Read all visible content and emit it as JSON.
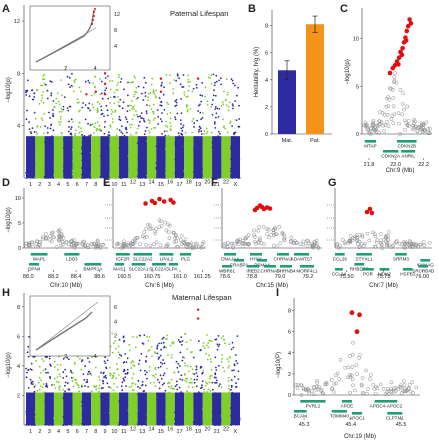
{
  "colors": {
    "blue": "#2e2aa0",
    "green": "#7ecf28",
    "red": "#e01010",
    "gray": "#8a8a8a",
    "orange": "#f39419",
    "teal": "#1f9f77"
  },
  "panels": {
    "A": {
      "label": "A",
      "title": "Paternal Lifespan",
      "ylabel": "−log10(p)",
      "yticks": [
        "4",
        "8",
        "12"
      ],
      "xticks": [
        "1",
        "2",
        "3",
        "4",
        "5",
        "6",
        "7",
        "8",
        "9",
        "10",
        "11",
        "13",
        "15",
        "17",
        "19",
        "21",
        "X"
      ],
      "xticks2": [
        "12",
        "14",
        "16",
        "18",
        "20",
        "22"
      ],
      "inset_yticks": [
        "4",
        "8",
        "12"
      ],
      "inset_xticks": [
        "2",
        "4"
      ]
    },
    "B": {
      "label": "B",
      "ylabel": "Heritability, h²g (%)",
      "yticks": [
        "0",
        "2",
        "4",
        "6",
        "8"
      ],
      "chart_data": {
        "type": "bar",
        "categories": [
          "Mat.",
          "Pat."
        ],
        "values": [
          4.7,
          8.1
        ],
        "errors": [
          0.7,
          0.6
        ],
        "ylim": [
          0,
          9
        ]
      }
    },
    "C": {
      "label": "C",
      "xlabel": "Chr:9 (Mb)",
      "ylabel": "−log10(p)",
      "yticks": [
        "0",
        "5",
        "10"
      ],
      "xticks": [
        "21.8",
        "22.0",
        "22.2"
      ],
      "genes": [
        "MTAP",
        "CDKN2A",
        "CDKN2B",
        "ANRIL"
      ]
    },
    "D": {
      "label": "D",
      "xlabel": "Chr:10 (Mb)",
      "ylabel": "−log10(p)",
      "yticks": [
        "0",
        "5",
        "10"
      ],
      "xticks": [
        "88.0",
        "88.2",
        "88.4",
        "88.6"
      ],
      "genes": [
        "WAPL",
        "OPN4",
        "LDB3",
        "BMPR1A"
      ]
    },
    "E": {
      "label": "E",
      "xlabel": "Chr:6 (Mb)",
      "xticks": [
        "160.5",
        "160.75",
        "161.0",
        "161.25"
      ],
      "genes": [
        "IGF2R",
        "SLC22A2",
        "LPAL2",
        "PLG",
        "MAS1",
        "SLC22A1",
        "SLC22A3",
        "LPA"
      ]
    },
    "F": {
      "label": "F",
      "xlabel": "Chr:15 (Mb)",
      "xticks": [
        "78.6",
        "78.8",
        "79.0",
        "79.2"
      ],
      "genes": [
        "DNAJA4",
        "CRABP1",
        "HYKK",
        "PSMA4",
        "CHRNA3",
        "ADAMTS7",
        "WDR61",
        "IREB2",
        "CHRNA5",
        "CHRNB4",
        "MORF4L1"
      ]
    },
    "G": {
      "label": "G",
      "xlabel": "Chr:7 (Mb)",
      "xticks": [
        "75.50",
        "75.75",
        "76.00"
      ],
      "genes": [
        "CCL26",
        "STYXL1",
        "SRRM3",
        "YWHAG",
        "RHBDD2",
        "CCL24",
        "POR",
        "MDH2",
        "HSPB1",
        "SRCRB4D"
      ]
    },
    "H": {
      "label": "H",
      "title": "Maternal Lifespan",
      "ylabel": "−log10(p)",
      "yticks": [
        "2",
        "4",
        "6",
        "8"
      ],
      "xticks": [
        "1",
        "2",
        "3",
        "4",
        "5",
        "6",
        "7",
        "8",
        "9",
        "10",
        "11",
        "13",
        "15",
        "17",
        "19",
        "21",
        "X"
      ],
      "xticks2": [
        "12",
        "14",
        "16",
        "18",
        "20",
        "22"
      ],
      "inset_yticks": [
        "2",
        "4",
        "6"
      ],
      "inset_xticks": [
        "2",
        "4"
      ]
    },
    "I": {
      "label": "I",
      "xlabel": "Chr:19 (Mb)",
      "ylabel": "−log10(P)",
      "yticks": [
        "0",
        "2",
        "4",
        "6",
        "8"
      ],
      "xticks": [
        "45.3",
        "45.4",
        "45.5"
      ],
      "genes": [
        "PVRL2",
        "APOE",
        "APOC4-APOC2",
        "BCAM",
        "TOMM40",
        "APOC1",
        "CLPTM1"
      ]
    }
  }
}
